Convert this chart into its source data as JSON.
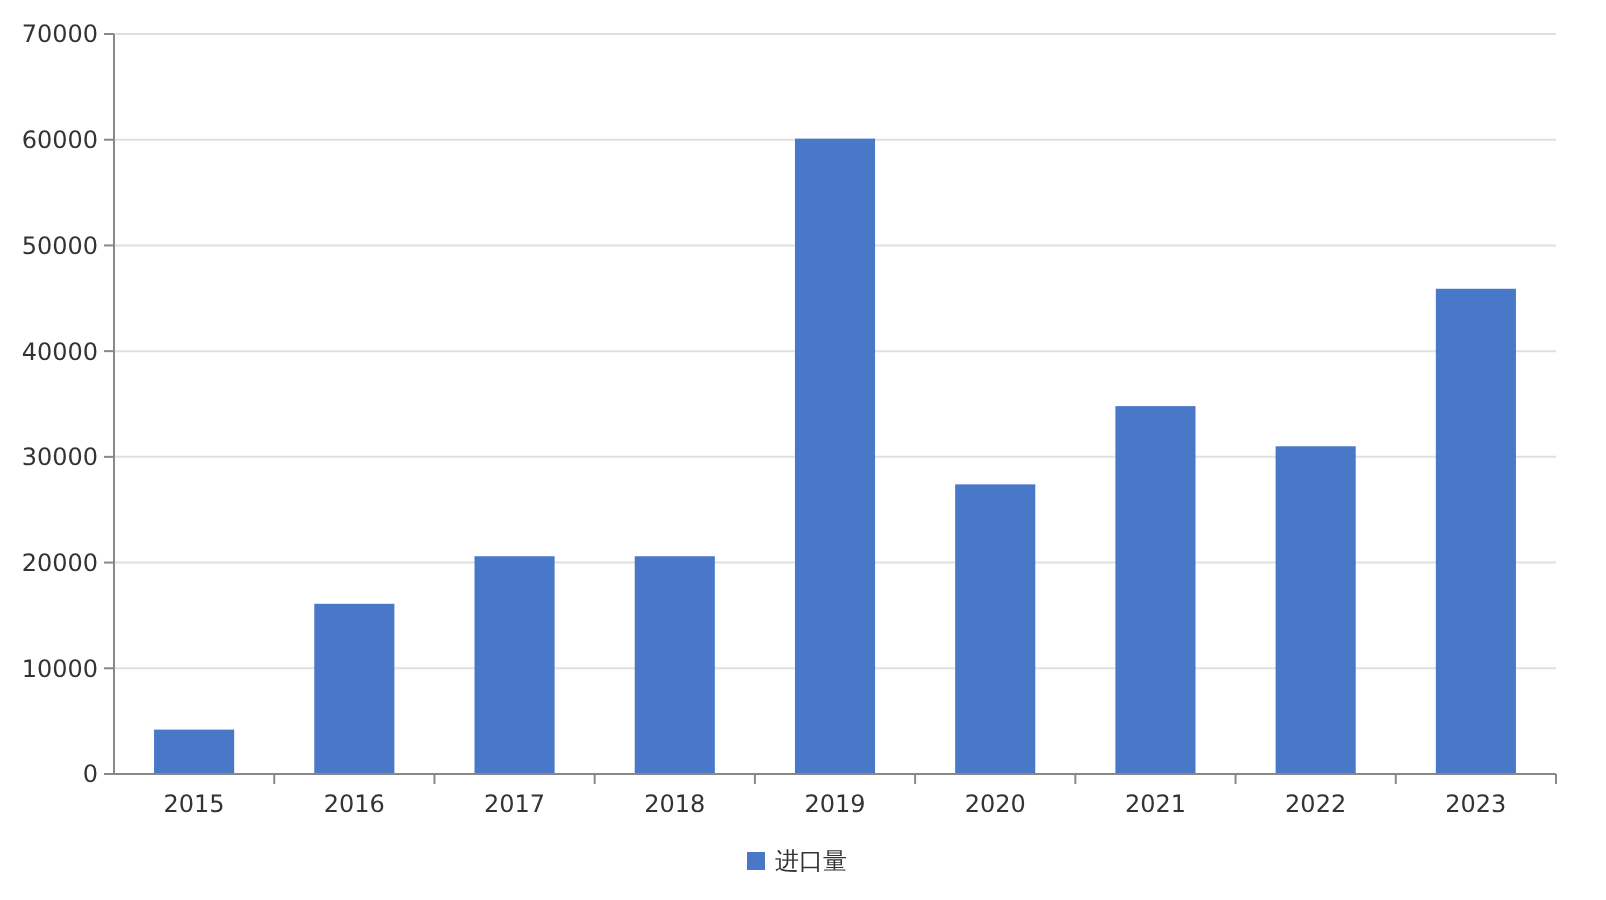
{
  "chart_data": {
    "type": "bar",
    "categories": [
      "2015",
      "2016",
      "2017",
      "2018",
      "2019",
      "2020",
      "2021",
      "2022",
      "2023"
    ],
    "series": [
      {
        "name": "进口量",
        "color": "#4a78c8",
        "values": [
          4200,
          16100,
          20600,
          20600,
          60100,
          27400,
          34800,
          31000,
          45900
        ]
      }
    ],
    "ylim": [
      0,
      70000
    ],
    "yticks": [
      0,
      10000,
      20000,
      30000,
      40000,
      50000,
      60000,
      70000
    ],
    "grid": "y",
    "legend": "bottom"
  }
}
